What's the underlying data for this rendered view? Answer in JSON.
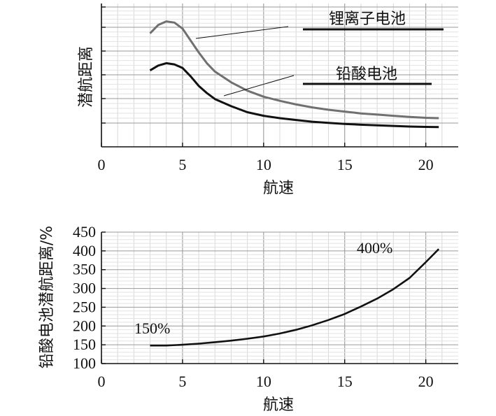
{
  "chart_data": [
    {
      "type": "line",
      "title": "",
      "xlabel": "航速",
      "ylabel": "潜航距离",
      "xlim": [
        0,
        22
      ],
      "xticks": [
        0,
        5,
        10,
        15,
        20
      ],
      "xtick_labels": [
        "0",
        "5",
        "10",
        "15",
        "20"
      ],
      "yticks_labeled": false,
      "grid": true,
      "legend": "annotated-right",
      "series": [
        {
          "name": "锂离子电池",
          "color": "#707070",
          "x": [
            3.0,
            3.5,
            4.0,
            4.5,
            5.0,
            5.5,
            6.0,
            6.5,
            7.0,
            8.0,
            9.0,
            10.0,
            11.0,
            12.0,
            13.0,
            14.0,
            15.0,
            16.0,
            17.0,
            18.0,
            19.0,
            20.0,
            20.8
          ],
          "y": [
            95,
            102,
            105,
            104,
            99,
            89,
            79,
            70,
            63,
            54,
            47,
            42,
            38.5,
            35.5,
            33,
            31,
            29.5,
            28,
            27,
            26,
            25,
            24.3,
            24
          ]
        },
        {
          "name": "铅酸电池",
          "color": "#111111",
          "x": [
            3.0,
            3.5,
            4.0,
            4.5,
            5.0,
            5.5,
            6.0,
            6.5,
            7.0,
            8.0,
            9.0,
            10.0,
            11.0,
            12.0,
            13.0,
            14.0,
            15.0,
            16.0,
            17.0,
            18.0,
            19.0,
            20.0,
            20.8
          ],
          "y": [
            64,
            68,
            70,
            69,
            66,
            59,
            51,
            45,
            40,
            34,
            29,
            26,
            24,
            22.5,
            21,
            20,
            19.2,
            18.5,
            18,
            17.5,
            17,
            16.7,
            16.5
          ]
        }
      ]
    },
    {
      "type": "line",
      "title": "",
      "xlabel": "航速",
      "ylabel": "铅酸电池潜航距离/%",
      "xlim": [
        0,
        22
      ],
      "ylim": [
        100,
        450
      ],
      "xticks": [
        0,
        5,
        10,
        15,
        20
      ],
      "xtick_labels": [
        "0",
        "5",
        "10",
        "15",
        "20"
      ],
      "yticks": [
        100,
        150,
        200,
        250,
        300,
        350,
        400,
        450
      ],
      "ytick_labels": [
        "100",
        "150",
        "200",
        "250",
        "300",
        "350",
        "400",
        "450"
      ],
      "grid": true,
      "annotations": [
        "150%",
        "400%"
      ],
      "series": [
        {
          "color": "#111111",
          "x": [
            3.0,
            4.0,
            5.0,
            6.0,
            7.0,
            8.0,
            9.0,
            10.0,
            11.0,
            12.0,
            13.0,
            14.0,
            15.0,
            16.0,
            17.0,
            18.0,
            19.0,
            20.0,
            20.8
          ],
          "y": [
            148,
            148,
            150,
            153,
            157,
            161,
            166,
            172,
            180,
            190,
            202,
            216,
            232,
            252,
            273,
            298,
            328,
            370,
            405
          ]
        }
      ]
    }
  ]
}
